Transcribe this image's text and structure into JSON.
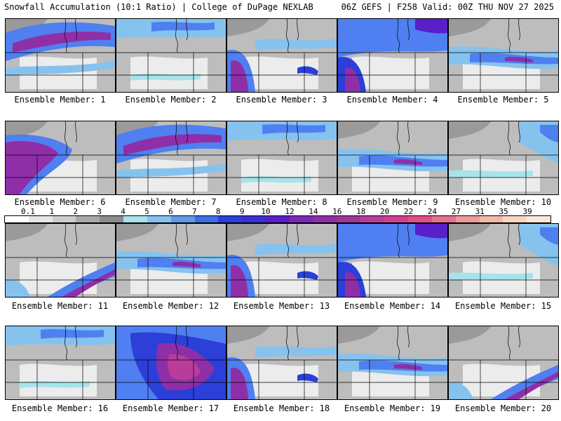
{
  "header": {
    "title": "Snowfall Accumulation (10:1 Ratio) | College of DuPage NEXLAB",
    "run_info": "06Z GEFS | F258 Valid: 00Z THU NOV 27 2025"
  },
  "colorbar": {
    "labels": [
      "0.1",
      "1",
      "2",
      "3",
      "4",
      "5",
      "6",
      "7",
      "8",
      "9",
      "10",
      "12",
      "14",
      "16",
      "18",
      "20",
      "22",
      "24",
      "27",
      "31",
      "35",
      "39"
    ],
    "colors": [
      "#ffffff",
      "#e6e6e6",
      "#cdcdcd",
      "#a9a9a9",
      "#8c8c8c",
      "#a6e3ea",
      "#86c2ee",
      "#5f99e8",
      "#3c6fe0",
      "#2c3fd8",
      "#3a2fd6",
      "#5a1fc9",
      "#7b28b8",
      "#8f2fa8",
      "#a13699",
      "#b83c9a",
      "#cf3f8f",
      "#df4f8a",
      "#e6708f",
      "#ec9a9a",
      "#f0b9a9",
      "#f6d6c2",
      "#fbe8dc"
    ]
  },
  "members": [
    {
      "label": "Ensemble Member: 1",
      "pattern": "north-heavy"
    },
    {
      "label": "Ensemble Member: 2",
      "pattern": "north-light"
    },
    {
      "label": "Ensemble Member: 3",
      "pattern": "west-south"
    },
    {
      "label": "Ensemble Member: 4",
      "pattern": "northwest-heavy"
    },
    {
      "label": "Ensemble Member: 5",
      "pattern": "central-band"
    },
    {
      "label": "Ensemble Member: 6",
      "pattern": "west-heavy"
    },
    {
      "label": "Ensemble Member: 7",
      "pattern": "north-heavy"
    },
    {
      "label": "Ensemble Member: 8",
      "pattern": "north-light"
    },
    {
      "label": "Ensemble Member: 9",
      "pattern": "central-band"
    },
    {
      "label": "Ensemble Member: 10",
      "pattern": "east-light"
    },
    {
      "label": "Ensemble Member: 11",
      "pattern": "southeast-band"
    },
    {
      "label": "Ensemble Member: 12",
      "pattern": "central-band"
    },
    {
      "label": "Ensemble Member: 13",
      "pattern": "west-south"
    },
    {
      "label": "Ensemble Member: 14",
      "pattern": "northwest-heavy"
    },
    {
      "label": "Ensemble Member: 15",
      "pattern": "east-light"
    },
    {
      "label": "Ensemble Member: 16",
      "pattern": "north-light"
    },
    {
      "label": "Ensemble Member: 17",
      "pattern": "widespread-heavy"
    },
    {
      "label": "Ensemble Member: 18",
      "pattern": "west-south"
    },
    {
      "label": "Ensemble Member: 19",
      "pattern": "central-band"
    },
    {
      "label": "Ensemble Member: 20",
      "pattern": "southeast-band"
    }
  ]
}
